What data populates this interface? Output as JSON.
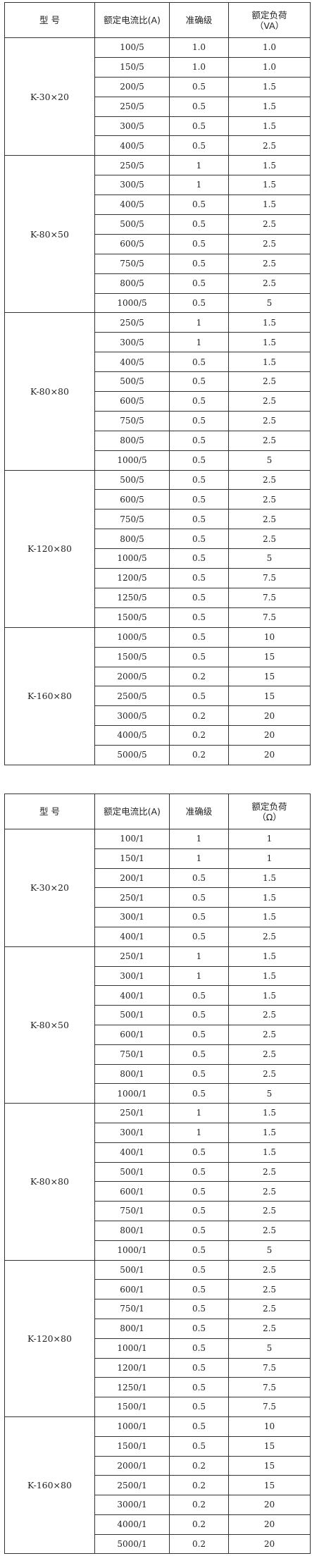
{
  "tables": [
    {
      "headers": {
        "model": "型  号",
        "ratio": "额定电流比(A)",
        "accuracy": "准确级",
        "load_line1": "额定负荷",
        "load_line2": "（VA）"
      },
      "groups": [
        {
          "model": "K-30×20",
          "rows": [
            [
              "100/5",
              "1.0",
              "1.0"
            ],
            [
              "150/5",
              "1.0",
              "1.0"
            ],
            [
              "200/5",
              "0.5",
              "1.5"
            ],
            [
              "250/5",
              "0.5",
              "1.5"
            ],
            [
              "300/5",
              "0.5",
              "1.5"
            ],
            [
              "400/5",
              "0.5",
              "2.5"
            ]
          ]
        },
        {
          "model": "K-80×50",
          "rows": [
            [
              "250/5",
              "1",
              "1.5"
            ],
            [
              "300/5",
              "1",
              "1.5"
            ],
            [
              "400/5",
              "0.5",
              "1.5"
            ],
            [
              "500/5",
              "0.5",
              "2.5"
            ],
            [
              "600/5",
              "0.5",
              "2.5"
            ],
            [
              "750/5",
              "0.5",
              "2.5"
            ],
            [
              "800/5",
              "0.5",
              "2.5"
            ],
            [
              "1000/5",
              "0.5",
              "5"
            ]
          ]
        },
        {
          "model": "K-80×80",
          "rows": [
            [
              "250/5",
              "1",
              "1.5"
            ],
            [
              "300/5",
              "1",
              "1.5"
            ],
            [
              "400/5",
              "0.5",
              "1.5"
            ],
            [
              "500/5",
              "0.5",
              "2.5"
            ],
            [
              "600/5",
              "0.5",
              "2.5"
            ],
            [
              "750/5",
              "0.5",
              "2.5"
            ],
            [
              "800/5",
              "0.5",
              "2.5"
            ],
            [
              "1000/5",
              "0.5",
              "5"
            ]
          ]
        },
        {
          "model": "K-120×80",
          "rows": [
            [
              "500/5",
              "0.5",
              "2.5"
            ],
            [
              "600/5",
              "0.5",
              "2.5"
            ],
            [
              "750/5",
              "0.5",
              "2.5"
            ],
            [
              "800/5",
              "0.5",
              "2.5"
            ],
            [
              "1000/5",
              "0.5",
              "5"
            ],
            [
              "1200/5",
              "0.5",
              "7.5"
            ],
            [
              "1250/5",
              "0.5",
              "7.5"
            ],
            [
              "1500/5",
              "0.5",
              "7.5"
            ]
          ]
        },
        {
          "model": "K-160×80",
          "rows": [
            [
              "1000/5",
              "0.5",
              "10"
            ],
            [
              "1500/5",
              "0.5",
              "15"
            ],
            [
              "2000/5",
              "0.2",
              "15"
            ],
            [
              "2500/5",
              "0.5",
              "15"
            ],
            [
              "3000/5",
              "0.2",
              "20"
            ],
            [
              "4000/5",
              "0.2",
              "20"
            ],
            [
              "5000/5",
              "0.2",
              "20"
            ]
          ]
        }
      ]
    },
    {
      "headers": {
        "model": "型  号",
        "ratio": "额定电流比(A)",
        "accuracy": "准确级",
        "load_line1": "额定负荷",
        "load_line2": "（Ω）"
      },
      "groups": [
        {
          "model": "K-30×20",
          "rows": [
            [
              "100/1",
              "1",
              "1"
            ],
            [
              "150/1",
              "1",
              "1"
            ],
            [
              "200/1",
              "0.5",
              "1.5"
            ],
            [
              "250/1",
              "0.5",
              "1.5"
            ],
            [
              "300/1",
              "0.5",
              "1.5"
            ],
            [
              "400/1",
              "0.5",
              "2.5"
            ]
          ]
        },
        {
          "model": "K-80×50",
          "rows": [
            [
              "250/1",
              "1",
              "1.5"
            ],
            [
              "300/1",
              "1",
              "1.5"
            ],
            [
              "400/1",
              "0.5",
              "1.5"
            ],
            [
              "500/1",
              "0.5",
              "2.5"
            ],
            [
              "600/1",
              "0.5",
              "2.5"
            ],
            [
              "750/1",
              "0.5",
              "2.5"
            ],
            [
              "800/1",
              "0.5",
              "2.5"
            ],
            [
              "1000/1",
              "0.5",
              "5"
            ]
          ]
        },
        {
          "model": "K-80×80",
          "rows": [
            [
              "250/1",
              "1",
              "1.5"
            ],
            [
              "300/1",
              "1",
              "1.5"
            ],
            [
              "400/1",
              "0.5",
              "1.5"
            ],
            [
              "500/1",
              "0.5",
              "2.5"
            ],
            [
              "600/1",
              "0.5",
              "2.5"
            ],
            [
              "750/1",
              "0.5",
              "2.5"
            ],
            [
              "800/1",
              "0.5",
              "2.5"
            ],
            [
              "1000/1",
              "0.5",
              "5"
            ]
          ]
        },
        {
          "model": "K-120×80",
          "rows": [
            [
              "500/1",
              "0.5",
              "2.5"
            ],
            [
              "600/1",
              "0.5",
              "2.5"
            ],
            [
              "750/1",
              "0.5",
              "2.5"
            ],
            [
              "800/1",
              "0.5",
              "2.5"
            ],
            [
              "1000/1",
              "0.5",
              "5"
            ],
            [
              "1200/1",
              "0.5",
              "7.5"
            ],
            [
              "1250/1",
              "0.5",
              "7.5"
            ],
            [
              "1500/1",
              "0.5",
              "7.5"
            ]
          ]
        },
        {
          "model": "K-160×80",
          "rows": [
            [
              "1000/1",
              "0.5",
              "10"
            ],
            [
              "1500/1",
              "0.5",
              "15"
            ],
            [
              "2000/1",
              "0.2",
              "15"
            ],
            [
              "2500/1",
              "0.2",
              "15"
            ],
            [
              "3000/1",
              "0.2",
              "20"
            ],
            [
              "4000/1",
              "0.2",
              "20"
            ],
            [
              "5000/1",
              "0.2",
              "20"
            ]
          ]
        }
      ]
    }
  ]
}
